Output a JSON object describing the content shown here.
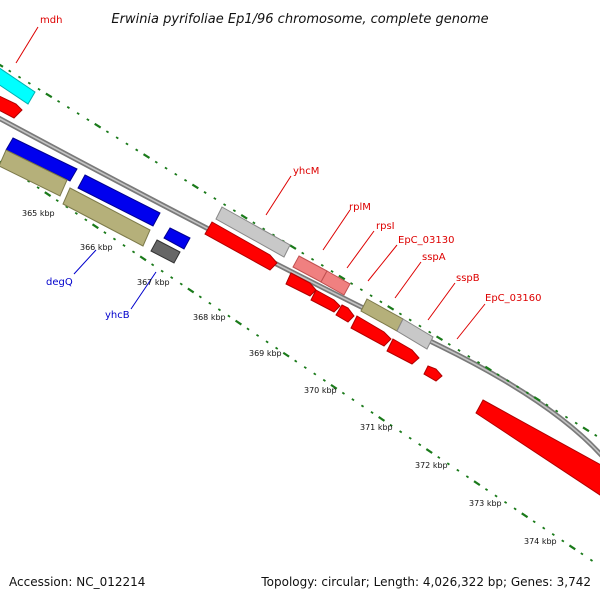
{
  "header": {
    "title": "Erwinia pyrifoliae Ep1/96 chromosome, complete genome"
  },
  "footer": {
    "accession": "Accession: NC_012214",
    "topology": "Topology: circular; Length: 4,026,322 bp; Genes: 3,742"
  },
  "colors": {
    "background": "#ffffff",
    "backbone": "#8a8a8a",
    "tick_dots": "#1a7a1a",
    "forward_gene": "#ff0000",
    "reverse_gene": "#0000ee",
    "rna_gene": "#00ffff",
    "pseudo_gene": "#b5b07a",
    "other_gene": "#c8c8c8",
    "ribosomal_gene": "#f08080",
    "dark_gene": "#666666",
    "red_label": "#dd0000",
    "blue_label": "#0000cc"
  },
  "scale": {
    "labels": [
      "365 kbp",
      "366 kbp",
      "367 kbp",
      "368 kbp",
      "369 kbp",
      "370 kbp",
      "371 kbp",
      "372 kbp",
      "373 kbp",
      "374 kbp"
    ]
  },
  "genes": {
    "labeled": [
      {
        "name": "mdh",
        "color": "red"
      },
      {
        "name": "yhcM",
        "color": "red"
      },
      {
        "name": "rplM",
        "color": "red"
      },
      {
        "name": "rpsI",
        "color": "red"
      },
      {
        "name": "EpC_03130",
        "color": "red"
      },
      {
        "name": "sspA",
        "color": "red"
      },
      {
        "name": "sspB",
        "color": "red"
      },
      {
        "name": "EpC_03160",
        "color": "red"
      },
      {
        "name": "degQ",
        "color": "blue"
      },
      {
        "name": "yhcB",
        "color": "blue"
      }
    ]
  }
}
